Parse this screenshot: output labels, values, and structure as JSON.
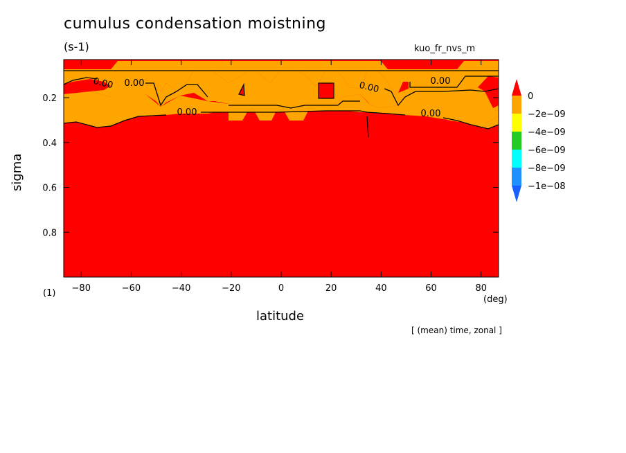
{
  "figure": {
    "title": "cumulus condensation moistning",
    "units": "(s-1)",
    "variable": "kuo_fr_nvs_m",
    "xlabel": "latitude",
    "xunit": "(deg)",
    "ylabel": "sigma",
    "yunit": "(1)",
    "footer": "[ (mean) time, zonal ]"
  },
  "chart_data": {
    "type": "heatmap",
    "x_range": [
      -87,
      87
    ],
    "y_range": [
      1.0,
      0.03
    ],
    "x_ticks": [
      -80,
      -60,
      -40,
      -20,
      0,
      20,
      40,
      60,
      80
    ],
    "y_ticks": [
      0.2,
      0.4,
      0.6,
      0.8
    ],
    "contour_labels": [
      "0.00",
      "0.00",
      "0.00",
      "0.00",
      "0.00",
      "0.00"
    ],
    "colorbar": {
      "labels": [
        "0",
        "−2e−09",
        "−4e−09",
        "−6e−09",
        "−8e−09",
        "−1e−08"
      ],
      "colors": [
        "#ff0000",
        "#ffa500",
        "#ffff00",
        "#22cc22",
        "#00ffff",
        "#1e90ff",
        "#1560ff"
      ]
    },
    "regions": [
      {
        "name": "positive",
        "color": "#ff0000"
      },
      {
        "name": "weakly-negative",
        "color": "#ffa500"
      }
    ]
  }
}
